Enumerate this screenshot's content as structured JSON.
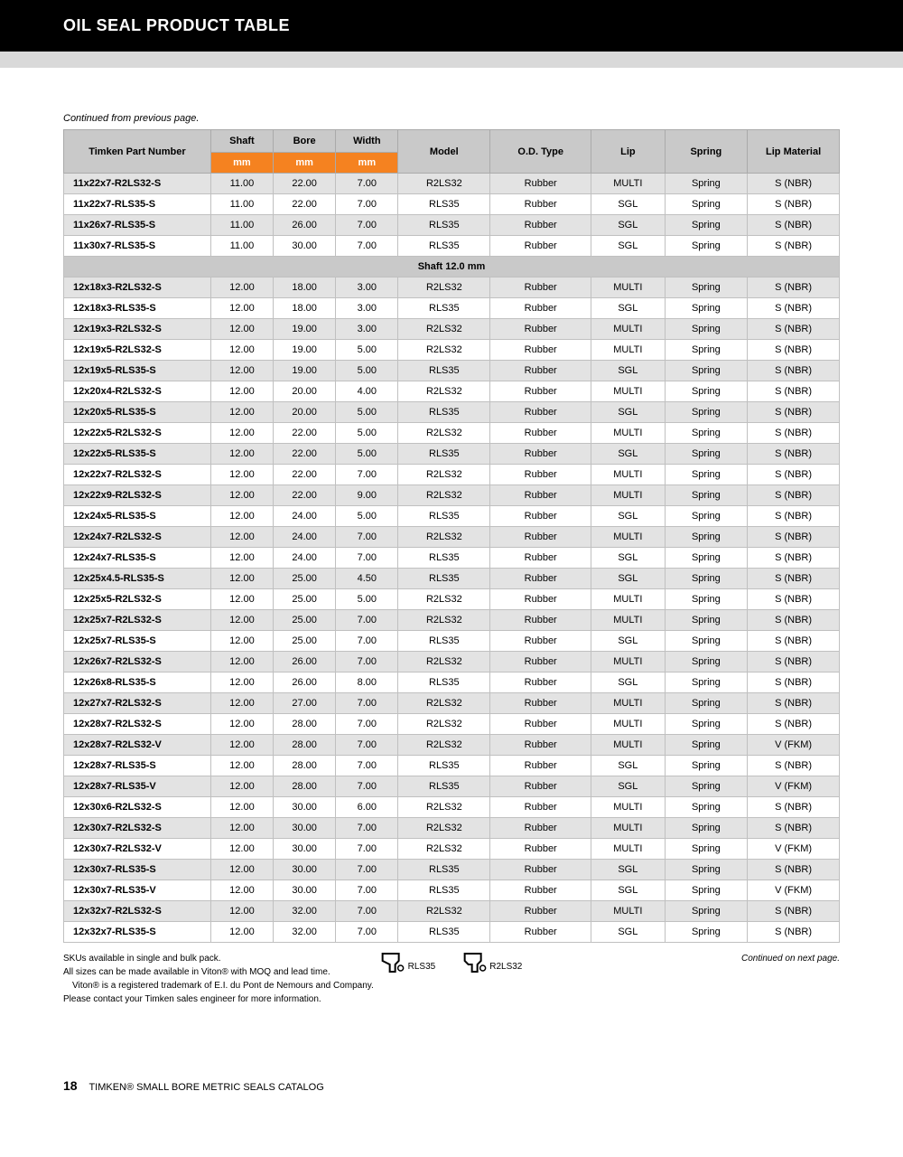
{
  "header": {
    "title": "OIL SEAL PRODUCT TABLE"
  },
  "continued_top": "Continued from previous page.",
  "columns": {
    "part": "Timken Part Number",
    "shaft": "Shaft",
    "bore": "Bore",
    "width": "Width",
    "model": "Model",
    "odtype": "O.D. Type",
    "lip": "Lip",
    "spring": "Spring",
    "material": "Lip Material",
    "unit": "mm"
  },
  "section_label": "Shaft 12.0 mm",
  "rows_top": [
    {
      "part": "11x22x7-R2LS32-S",
      "shaft": "11.00",
      "bore": "22.00",
      "width": "7.00",
      "model": "R2LS32",
      "od": "Rubber",
      "lip": "MULTI",
      "spring": "Spring",
      "mat": "S (NBR)"
    },
    {
      "part": "11x22x7-RLS35-S",
      "shaft": "11.00",
      "bore": "22.00",
      "width": "7.00",
      "model": "RLS35",
      "od": "Rubber",
      "lip": "SGL",
      "spring": "Spring",
      "mat": "S (NBR)"
    },
    {
      "part": "11x26x7-RLS35-S",
      "shaft": "11.00",
      "bore": "26.00",
      "width": "7.00",
      "model": "RLS35",
      "od": "Rubber",
      "lip": "SGL",
      "spring": "Spring",
      "mat": "S (NBR)"
    },
    {
      "part": "11x30x7-RLS35-S",
      "shaft": "11.00",
      "bore": "30.00",
      "width": "7.00",
      "model": "RLS35",
      "od": "Rubber",
      "lip": "SGL",
      "spring": "Spring",
      "mat": "S (NBR)"
    }
  ],
  "rows_main": [
    {
      "part": "12x18x3-R2LS32-S",
      "shaft": "12.00",
      "bore": "18.00",
      "width": "3.00",
      "model": "R2LS32",
      "od": "Rubber",
      "lip": "MULTI",
      "spring": "Spring",
      "mat": "S (NBR)"
    },
    {
      "part": "12x18x3-RLS35-S",
      "shaft": "12.00",
      "bore": "18.00",
      "width": "3.00",
      "model": "RLS35",
      "od": "Rubber",
      "lip": "SGL",
      "spring": "Spring",
      "mat": "S (NBR)"
    },
    {
      "part": "12x19x3-R2LS32-S",
      "shaft": "12.00",
      "bore": "19.00",
      "width": "3.00",
      "model": "R2LS32",
      "od": "Rubber",
      "lip": "MULTI",
      "spring": "Spring",
      "mat": "S (NBR)"
    },
    {
      "part": "12x19x5-R2LS32-S",
      "shaft": "12.00",
      "bore": "19.00",
      "width": "5.00",
      "model": "R2LS32",
      "od": "Rubber",
      "lip": "MULTI",
      "spring": "Spring",
      "mat": "S (NBR)"
    },
    {
      "part": "12x19x5-RLS35-S",
      "shaft": "12.00",
      "bore": "19.00",
      "width": "5.00",
      "model": "RLS35",
      "od": "Rubber",
      "lip": "SGL",
      "spring": "Spring",
      "mat": "S (NBR)"
    },
    {
      "part": "12x20x4-R2LS32-S",
      "shaft": "12.00",
      "bore": "20.00",
      "width": "4.00",
      "model": "R2LS32",
      "od": "Rubber",
      "lip": "MULTI",
      "spring": "Spring",
      "mat": "S (NBR)"
    },
    {
      "part": "12x20x5-RLS35-S",
      "shaft": "12.00",
      "bore": "20.00",
      "width": "5.00",
      "model": "RLS35",
      "od": "Rubber",
      "lip": "SGL",
      "spring": "Spring",
      "mat": "S (NBR)"
    },
    {
      "part": "12x22x5-R2LS32-S",
      "shaft": "12.00",
      "bore": "22.00",
      "width": "5.00",
      "model": "R2LS32",
      "od": "Rubber",
      "lip": "MULTI",
      "spring": "Spring",
      "mat": "S (NBR)"
    },
    {
      "part": "12x22x5-RLS35-S",
      "shaft": "12.00",
      "bore": "22.00",
      "width": "5.00",
      "model": "RLS35",
      "od": "Rubber",
      "lip": "SGL",
      "spring": "Spring",
      "mat": "S (NBR)"
    },
    {
      "part": "12x22x7-R2LS32-S",
      "shaft": "12.00",
      "bore": "22.00",
      "width": "7.00",
      "model": "R2LS32",
      "od": "Rubber",
      "lip": "MULTI",
      "spring": "Spring",
      "mat": "S (NBR)"
    },
    {
      "part": "12x22x9-R2LS32-S",
      "shaft": "12.00",
      "bore": "22.00",
      "width": "9.00",
      "model": "R2LS32",
      "od": "Rubber",
      "lip": "MULTI",
      "spring": "Spring",
      "mat": "S (NBR)"
    },
    {
      "part": "12x24x5-RLS35-S",
      "shaft": "12.00",
      "bore": "24.00",
      "width": "5.00",
      "model": "RLS35",
      "od": "Rubber",
      "lip": "SGL",
      "spring": "Spring",
      "mat": "S (NBR)"
    },
    {
      "part": "12x24x7-R2LS32-S",
      "shaft": "12.00",
      "bore": "24.00",
      "width": "7.00",
      "model": "R2LS32",
      "od": "Rubber",
      "lip": "MULTI",
      "spring": "Spring",
      "mat": "S (NBR)"
    },
    {
      "part": "12x24x7-RLS35-S",
      "shaft": "12.00",
      "bore": "24.00",
      "width": "7.00",
      "model": "RLS35",
      "od": "Rubber",
      "lip": "SGL",
      "spring": "Spring",
      "mat": "S (NBR)"
    },
    {
      "part": "12x25x4.5-RLS35-S",
      "shaft": "12.00",
      "bore": "25.00",
      "width": "4.50",
      "model": "RLS35",
      "od": "Rubber",
      "lip": "SGL",
      "spring": "Spring",
      "mat": "S (NBR)"
    },
    {
      "part": "12x25x5-R2LS32-S",
      "shaft": "12.00",
      "bore": "25.00",
      "width": "5.00",
      "model": "R2LS32",
      "od": "Rubber",
      "lip": "MULTI",
      "spring": "Spring",
      "mat": "S (NBR)"
    },
    {
      "part": "12x25x7-R2LS32-S",
      "shaft": "12.00",
      "bore": "25.00",
      "width": "7.00",
      "model": "R2LS32",
      "od": "Rubber",
      "lip": "MULTI",
      "spring": "Spring",
      "mat": "S (NBR)"
    },
    {
      "part": "12x25x7-RLS35-S",
      "shaft": "12.00",
      "bore": "25.00",
      "width": "7.00",
      "model": "RLS35",
      "od": "Rubber",
      "lip": "SGL",
      "spring": "Spring",
      "mat": "S (NBR)"
    },
    {
      "part": "12x26x7-R2LS32-S",
      "shaft": "12.00",
      "bore": "26.00",
      "width": "7.00",
      "model": "R2LS32",
      "od": "Rubber",
      "lip": "MULTI",
      "spring": "Spring",
      "mat": "S (NBR)"
    },
    {
      "part": "12x26x8-RLS35-S",
      "shaft": "12.00",
      "bore": "26.00",
      "width": "8.00",
      "model": "RLS35",
      "od": "Rubber",
      "lip": "SGL",
      "spring": "Spring",
      "mat": "S (NBR)"
    },
    {
      "part": "12x27x7-R2LS32-S",
      "shaft": "12.00",
      "bore": "27.00",
      "width": "7.00",
      "model": "R2LS32",
      "od": "Rubber",
      "lip": "MULTI",
      "spring": "Spring",
      "mat": "S (NBR)"
    },
    {
      "part": "12x28x7-R2LS32-S",
      "shaft": "12.00",
      "bore": "28.00",
      "width": "7.00",
      "model": "R2LS32",
      "od": "Rubber",
      "lip": "MULTI",
      "spring": "Spring",
      "mat": "S (NBR)"
    },
    {
      "part": "12x28x7-R2LS32-V",
      "shaft": "12.00",
      "bore": "28.00",
      "width": "7.00",
      "model": "R2LS32",
      "od": "Rubber",
      "lip": "MULTI",
      "spring": "Spring",
      "mat": "V (FKM)"
    },
    {
      "part": "12x28x7-RLS35-S",
      "shaft": "12.00",
      "bore": "28.00",
      "width": "7.00",
      "model": "RLS35",
      "od": "Rubber",
      "lip": "SGL",
      "spring": "Spring",
      "mat": "S (NBR)"
    },
    {
      "part": "12x28x7-RLS35-V",
      "shaft": "12.00",
      "bore": "28.00",
      "width": "7.00",
      "model": "RLS35",
      "od": "Rubber",
      "lip": "SGL",
      "spring": "Spring",
      "mat": "V (FKM)"
    },
    {
      "part": "12x30x6-R2LS32-S",
      "shaft": "12.00",
      "bore": "30.00",
      "width": "6.00",
      "model": "R2LS32",
      "od": "Rubber",
      "lip": "MULTI",
      "spring": "Spring",
      "mat": "S (NBR)"
    },
    {
      "part": "12x30x7-R2LS32-S",
      "shaft": "12.00",
      "bore": "30.00",
      "width": "7.00",
      "model": "R2LS32",
      "od": "Rubber",
      "lip": "MULTI",
      "spring": "Spring",
      "mat": "S (NBR)"
    },
    {
      "part": "12x30x7-R2LS32-V",
      "shaft": "12.00",
      "bore": "30.00",
      "width": "7.00",
      "model": "R2LS32",
      "od": "Rubber",
      "lip": "MULTI",
      "spring": "Spring",
      "mat": "V (FKM)"
    },
    {
      "part": "12x30x7-RLS35-S",
      "shaft": "12.00",
      "bore": "30.00",
      "width": "7.00",
      "model": "RLS35",
      "od": "Rubber",
      "lip": "SGL",
      "spring": "Spring",
      "mat": "S (NBR)"
    },
    {
      "part": "12x30x7-RLS35-V",
      "shaft": "12.00",
      "bore": "30.00",
      "width": "7.00",
      "model": "RLS35",
      "od": "Rubber",
      "lip": "SGL",
      "spring": "Spring",
      "mat": "V (FKM)"
    },
    {
      "part": "12x32x7-R2LS32-S",
      "shaft": "12.00",
      "bore": "32.00",
      "width": "7.00",
      "model": "R2LS32",
      "od": "Rubber",
      "lip": "MULTI",
      "spring": "Spring",
      "mat": "S (NBR)"
    },
    {
      "part": "12x32x7-RLS35-S",
      "shaft": "12.00",
      "bore": "32.00",
      "width": "7.00",
      "model": "RLS35",
      "od": "Rubber",
      "lip": "SGL",
      "spring": "Spring",
      "mat": "S (NBR)"
    }
  ],
  "footnotes": {
    "l1": "SKUs available in single and bulk pack.",
    "l2": "All sizes can be made available in Viton® with MOQ and lead time.",
    "l3": "Viton® is a registered trademark of E.I. du Pont de Nemours and Company.",
    "l4": "Please contact your Timken sales engineer for more information.",
    "right": "Continued on next page."
  },
  "icon_labels": {
    "a": "RLS35",
    "b": "R2LS32"
  },
  "footer": {
    "page": "18",
    "text": "TIMKEN® SMALL BORE METRIC SEALS CATALOG"
  }
}
